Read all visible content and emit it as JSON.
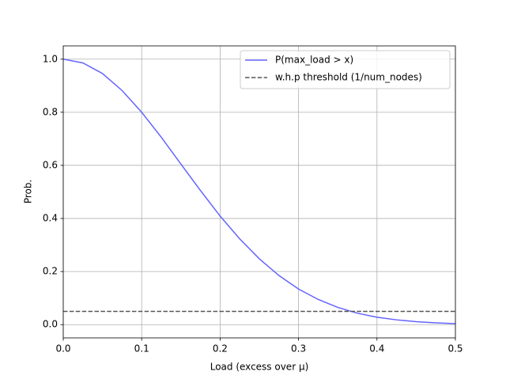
{
  "chart_data": {
    "type": "line",
    "xlabel": "Load (excess over μ)",
    "ylabel": "Prob.",
    "series": [
      {
        "name": "P(max_load > x)",
        "color": "#6464ff",
        "style": "solid",
        "x": [
          0,
          0.025,
          0.05,
          0.075,
          0.1,
          0.125,
          0.15,
          0.175,
          0.2,
          0.225,
          0.25,
          0.275,
          0.3,
          0.325,
          0.35,
          0.375,
          0.4,
          0.425,
          0.45,
          0.475,
          0.5
        ],
        "values": [
          1,
          0.986,
          0.946,
          0.882,
          0.8,
          0.706,
          0.605,
          0.505,
          0.409,
          0.323,
          0.248,
          0.185,
          0.134,
          0.095,
          0.065,
          0.043,
          0.028,
          0.018,
          0.011,
          0.0065,
          0.0038
        ]
      },
      {
        "name": "w.h.p threshold (1/num_nodes)",
        "color": "#555555",
        "style": "dashed",
        "x": [
          0,
          0.5
        ],
        "values": [
          0.05,
          0.05
        ]
      }
    ],
    "xlim": [
      0,
      0.5
    ],
    "ylim": [
      -0.05,
      1.05
    ],
    "xticks": [
      {
        "value": 0,
        "label": "0.0"
      },
      {
        "value": 0.1,
        "label": "0.1"
      },
      {
        "value": 0.2,
        "label": "0.2"
      },
      {
        "value": 0.3,
        "label": "0.3"
      },
      {
        "value": 0.4,
        "label": "0.4"
      },
      {
        "value": 0.5,
        "label": "0.5"
      }
    ],
    "yticks": [
      {
        "value": 0,
        "label": "0.0"
      },
      {
        "value": 0.2,
        "label": "0.2"
      },
      {
        "value": 0.4,
        "label": "0.4"
      },
      {
        "value": 0.6,
        "label": "0.6"
      },
      {
        "value": 0.8,
        "label": "0.8"
      },
      {
        "value": 1,
        "label": "1.0"
      }
    ],
    "grid": true,
    "legend": "upper right"
  }
}
